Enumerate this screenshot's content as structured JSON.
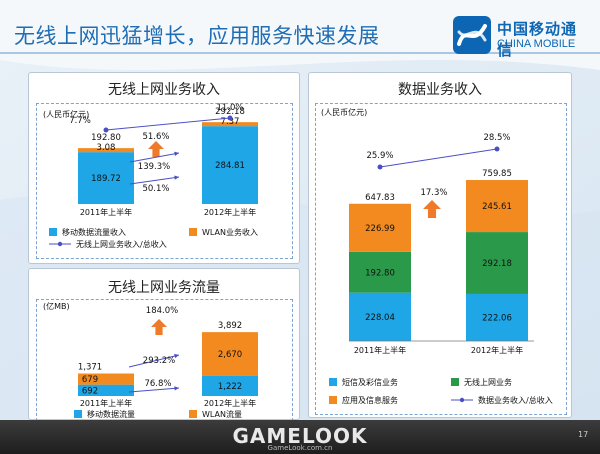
{
  "slide": {
    "title": "无线上网迅猛增长，应用服务快速发展",
    "logo_cn": "中国移动通信",
    "logo_en": "CHINA MOBILE",
    "page_number": "17",
    "watermark": "GAMELOOK",
    "watermark_sub": "GameLook.com.cn"
  },
  "colors": {
    "blue": "#1ea6e6",
    "orange": "#f28a1f",
    "green": "#2a9a4a",
    "line": "#4a4fc4",
    "arrow": "#ef7a2a",
    "title": "#1f6db5"
  },
  "chart_data": [
    {
      "type": "bar",
      "title": "无线上网业务收入",
      "unit": "(人民币亿元)",
      "categories": [
        "2011年上半年",
        "2012年上半年"
      ],
      "series": [
        {
          "name": "移动数据流量收入",
          "values": [
            189.72,
            284.81
          ],
          "labels": [
            "189.72",
            "284.81"
          ]
        },
        {
          "name": "WLAN业务收入",
          "values": [
            3.08,
            7.37
          ],
          "labels": [
            "3.08",
            "7.37"
          ]
        }
      ],
      "totals": [
        "192.80",
        "292.18"
      ],
      "line": {
        "name": "无线上网业务收入/总收入",
        "values": [
          7.7,
          11.0
        ],
        "labels": [
          "7.7%",
          "11.0%"
        ]
      },
      "growth": [
        "51.6%",
        "139.3%",
        "50.1%"
      ],
      "ylim": [
        0,
        300
      ]
    },
    {
      "type": "bar",
      "title": "无线上网业务流量",
      "unit": "(亿MB)",
      "categories": [
        "2011年上半年",
        "2012年上半年"
      ],
      "series": [
        {
          "name": "移动数据流量",
          "values": [
            692,
            1222
          ],
          "labels": [
            "692",
            "1,222"
          ]
        },
        {
          "name": "WLAN流量",
          "values": [
            679,
            2670
          ],
          "labels": [
            "679",
            "2,670"
          ]
        }
      ],
      "totals": [
        "1,371",
        "3,892"
      ],
      "growth": [
        "184.0%",
        "293.2%",
        "76.8%"
      ],
      "ylim": [
        0,
        3900
      ]
    },
    {
      "type": "bar",
      "title": "数据业务收入",
      "unit": "(人民币亿元)",
      "categories": [
        "2011年上半年",
        "2012年上半年"
      ],
      "series": [
        {
          "name": "短信及彩信业务",
          "values": [
            228.04,
            222.06
          ],
          "labels": [
            "228.04",
            "222.06"
          ]
        },
        {
          "name": "无线上网业务",
          "values": [
            192.8,
            292.18
          ],
          "labels": [
            "192.80",
            "292.18"
          ]
        },
        {
          "name": "应用及信息服务",
          "values": [
            226.99,
            245.61
          ],
          "labels": [
            "226.99",
            "245.61"
          ]
        }
      ],
      "totals": [
        "647.83",
        "759.85"
      ],
      "line": {
        "name": "数据业务收入/总收入",
        "values": [
          25.9,
          28.5
        ],
        "labels": [
          "25.9%",
          "28.5%"
        ]
      },
      "growth": [
        "17.3%"
      ],
      "ylim": [
        0,
        760
      ]
    }
  ]
}
